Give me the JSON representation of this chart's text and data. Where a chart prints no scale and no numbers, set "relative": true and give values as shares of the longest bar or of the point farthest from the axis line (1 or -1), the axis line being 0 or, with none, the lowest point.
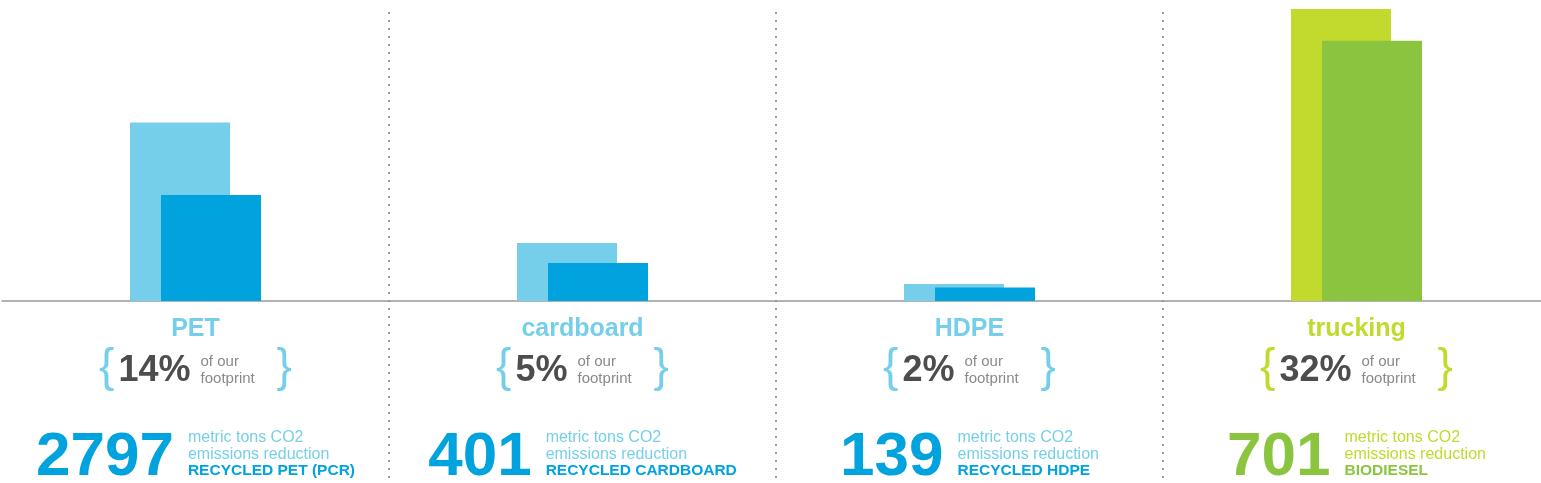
{
  "chart_data": {
    "type": "bar",
    "relative": true,
    "categories": [
      "PET",
      "cardboard",
      "HDPE",
      "trucking"
    ],
    "series": [
      {
        "colors": [
          "#76cfea",
          "#76cfea",
          "#76cfea",
          "#c2d92e"
        ],
        "values": [
          0.611,
          0.199,
          0.058,
          1
        ]
      },
      {
        "colors": [
          "#00a3de",
          "#00a3de",
          "#00a3de",
          "#8bc53f"
        ],
        "values": [
          0.363,
          0.13,
          0.046,
          0.891
        ]
      }
    ],
    "annotations": [
      "{14% of our footprint }",
      "2797\nmetric tons CO2\nemissions reduction\nRECYCLED PET (PCR)",
      "{5% of our footprint }",
      "401\nmetric tons CO2\nemissions reduction\nRECYCLED CARDBOARD",
      "{2% of our footprint }",
      "139\nmetric tons CO2\nemissions reduction\nRECYCLED HDPE",
      "{32% of our footprint }",
      "701\nmetric tons CO2\nemissions reduction\nBIODIESEL"
    ],
    "grid": "x"
  }
}
